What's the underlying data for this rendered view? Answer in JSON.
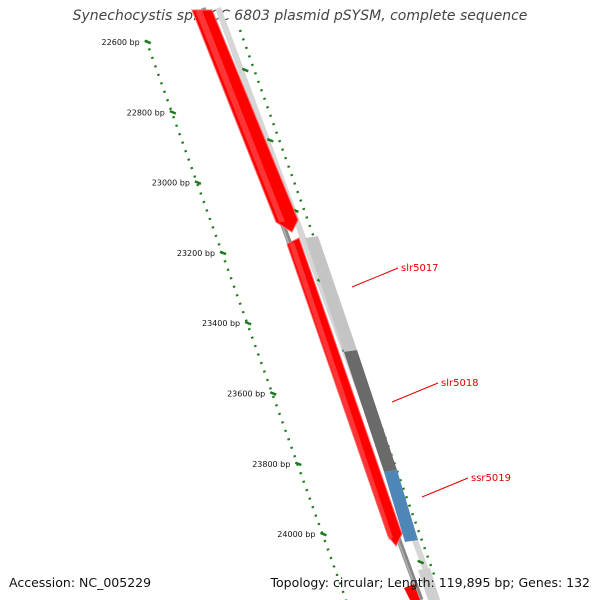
{
  "title": "Synechocystis sp. PCC 6803 plasmid pSYSM, complete sequence",
  "footer": {
    "accession": "Accession: NC_005229",
    "summary": "Topology: circular; Length: 119,895 bp; Genes: 132"
  },
  "ticks": [
    {
      "label": "22600 bp",
      "position_bp": 22600
    },
    {
      "label": "22800 bp",
      "position_bp": 22800
    },
    {
      "label": "23000 bp",
      "position_bp": 23000
    },
    {
      "label": "23200 bp",
      "position_bp": 23200
    },
    {
      "label": "23400 bp",
      "position_bp": 23400
    },
    {
      "label": "23600 bp",
      "position_bp": 23600
    },
    {
      "label": "23800 bp",
      "position_bp": 23800
    },
    {
      "label": "24000 bp",
      "position_bp": 24000
    }
  ],
  "genes": [
    {
      "name": "slr5017",
      "color": "#c4c4c4"
    },
    {
      "name": "slr5018",
      "color": "#6a6a6a"
    },
    {
      "name": "ssr5019",
      "color": "#4f86b8"
    }
  ],
  "colors": {
    "cds": "#ff0000",
    "backbone": "#888888",
    "tick": "#1e7a1e",
    "label": "#e00000"
  }
}
